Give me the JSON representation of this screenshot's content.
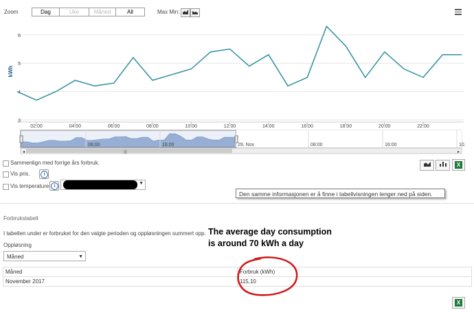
{
  "toolbar": {
    "zoom_label": "Zoom",
    "zoom_buttons": [
      {
        "label": "Dag",
        "state": "active"
      },
      {
        "label": "Uke",
        "state": "disabled"
      },
      {
        "label": "Måned",
        "state": "disabled"
      },
      {
        "label": "All",
        "state": "normal"
      }
    ],
    "maxmin_label": "Max Min:",
    "menu_icon": "hamburger-menu-icon"
  },
  "chart_data": {
    "type": "line",
    "ylabel": "kWh",
    "y_ticks": [
      "6",
      "5",
      "4",
      "3"
    ],
    "ylim": [
      3,
      6.6
    ],
    "x_ticks": [
      "02:00",
      "04:00",
      "06:00",
      "08:00",
      "10:00",
      "12:00",
      "14:00",
      "16:00",
      "18:00",
      "20:00",
      "22:00"
    ],
    "x_hours": [
      1,
      2,
      3,
      4,
      5,
      6,
      7,
      8,
      9,
      10,
      11,
      12,
      13,
      14,
      15,
      16,
      17,
      18,
      19,
      20,
      21,
      22,
      23,
      24
    ],
    "values": [
      4.0,
      3.7,
      4.0,
      4.4,
      4.2,
      4.3,
      5.2,
      4.4,
      4.6,
      4.8,
      5.4,
      5.5,
      4.9,
      5.3,
      4.2,
      4.5,
      6.3,
      5.6,
      4.5,
      5.4,
      4.8,
      4.5,
      5.3,
      5.3
    ],
    "line_color": "#2e8f9e",
    "grid": true,
    "navigator": {
      "labels": [
        "08:00",
        "16:00",
        "29. Nov",
        "08:00",
        "16:00",
        "10."
      ],
      "fill_color": "#8fa7cf"
    }
  },
  "options": {
    "compare_label": "Sammenlign med forrige års forbruk.",
    "price_label": "Vis pris.",
    "temperature_label": "Vis temperaturer."
  },
  "tooltip": "Den samme informasjonen er å finne i tabellvisningen lenger ned på siden.",
  "table_section": {
    "title": "Forbrukstabell",
    "description": "I tabellen under er forbruket for den valgte perioden og oppløsningen summert opp.",
    "resolution_label": "Oppløsning",
    "resolution_value": "Måned",
    "columns": [
      "Måned",
      "Forbruk (kWh)"
    ],
    "rows": [
      [
        "November 2017",
        "115,10"
      ]
    ]
  },
  "annotation": {
    "line1": "The average day consumption",
    "line2": "is around 70 kWh a day",
    "circle_color": "#d21414"
  }
}
